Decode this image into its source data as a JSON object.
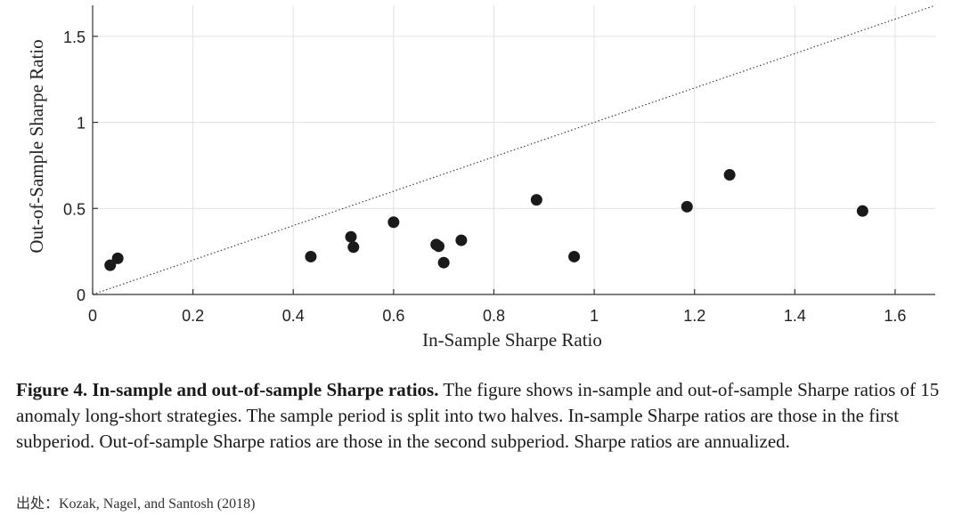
{
  "chart_data": {
    "type": "scatter",
    "title": "",
    "xlabel": "In-Sample Sharpe Ratio",
    "ylabel": "Out-of-Sample Sharpe Ratio",
    "xlim": [
      0,
      1.68
    ],
    "ylim": [
      0,
      1.68
    ],
    "xticks": [
      0,
      0.2,
      0.4,
      0.6,
      0.8,
      1,
      1.2,
      1.4,
      1.6
    ],
    "yticks": [
      0,
      0.5,
      1,
      1.5
    ],
    "xtick_labels": [
      "0",
      "0.2",
      "0.4",
      "0.6",
      "0.8",
      "1",
      "1.2",
      "1.4",
      "1.6"
    ],
    "ytick_labels": [
      "0",
      "0.5",
      "1",
      "1.5"
    ],
    "grid": true,
    "reference_line": "45-degree dotted line",
    "points": [
      {
        "x": 0.035,
        "y": 0.17
      },
      {
        "x": 0.05,
        "y": 0.21
      },
      {
        "x": 0.435,
        "y": 0.22
      },
      {
        "x": 0.515,
        "y": 0.335
      },
      {
        "x": 0.52,
        "y": 0.275
      },
      {
        "x": 0.6,
        "y": 0.42
      },
      {
        "x": 0.685,
        "y": 0.29
      },
      {
        "x": 0.69,
        "y": 0.28
      },
      {
        "x": 0.7,
        "y": 0.185
      },
      {
        "x": 0.735,
        "y": 0.315
      },
      {
        "x": 0.885,
        "y": 0.55
      },
      {
        "x": 0.96,
        "y": 0.22
      },
      {
        "x": 1.185,
        "y": 0.51
      },
      {
        "x": 1.27,
        "y": 0.695
      },
      {
        "x": 1.535,
        "y": 0.485
      }
    ]
  },
  "caption": {
    "label": "Figure 4.  In-sample and out-of-sample Sharpe ratios.",
    "text": " The figure shows in-sample and out-of-sample Sharpe ratios of 15 anomaly long-short strategies. The sample period is split into two halves. In-sample Sharpe ratios are those in the first subperiod. Out-of-sample Sharpe ratios are those in the second subperiod. Sharpe ratios are annualized."
  },
  "source": "出处：Kozak, Nagel, and Santosh (2018)"
}
